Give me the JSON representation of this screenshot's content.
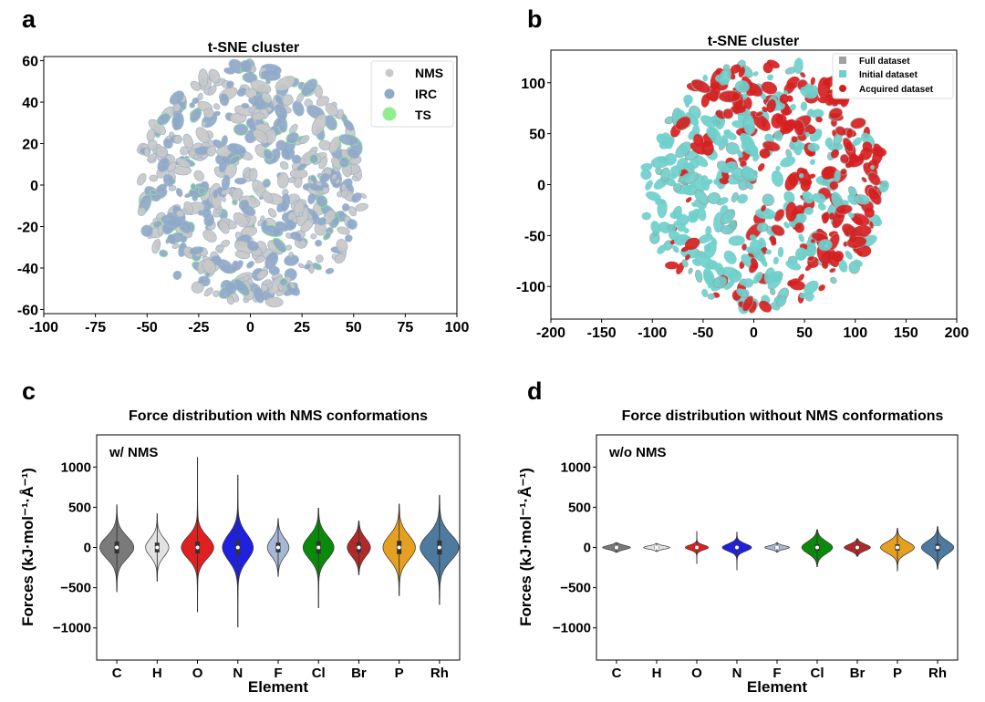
{
  "chart_data": [
    {
      "panel": "a",
      "type": "scatter",
      "title": "t-SNE cluster",
      "xlabel": "",
      "ylabel": "",
      "xlim": [
        -100,
        100
      ],
      "ylim": [
        -62,
        62
      ],
      "xticks": [
        "-100",
        "-75",
        "-50",
        "-25",
        "0",
        "25",
        "50",
        "75",
        "100"
      ],
      "xtick_values": [
        -100,
        -75,
        -50,
        -25,
        0,
        25,
        50,
        75,
        100
      ],
      "yticks": [
        "60",
        "40",
        "20",
        "0",
        "-20",
        "-40",
        "-60"
      ],
      "ytick_values": [
        60,
        40,
        20,
        0,
        -20,
        -40,
        -60
      ],
      "cluster": {
        "center": [
          0,
          0
        ],
        "radius_x": 55,
        "radius_y": 58
      },
      "legend": [
        {
          "label": "NMS",
          "color": "#c8c8c8"
        },
        {
          "label": "IRC",
          "color": "#8fa9c8"
        },
        {
          "label": "TS",
          "color": "#90ee90"
        }
      ],
      "legend_position": "top-right"
    },
    {
      "panel": "b",
      "type": "scatter",
      "title": "t-SNE cluster",
      "xlabel": "",
      "ylabel": "",
      "xlim": [
        -200,
        200
      ],
      "ylim": [
        -132,
        132
      ],
      "xticks": [
        "-200",
        "-150",
        "-100",
        "-50",
        "0",
        "50",
        "100",
        "150",
        "200"
      ],
      "xtick_values": [
        -200,
        -150,
        -100,
        -50,
        0,
        50,
        100,
        150,
        200
      ],
      "yticks": [
        "100",
        "50",
        "0",
        "-50",
        "-100"
      ],
      "ytick_values": [
        100,
        50,
        0,
        -50,
        -100
      ],
      "cluster": {
        "center": [
          10,
          0
        ],
        "radius_x": 120,
        "radius_y": 122
      },
      "legend": [
        {
          "label": "Full dataset",
          "color": "#a0a0a0"
        },
        {
          "label": "Initial dataset",
          "color": "#6fd0cc"
        },
        {
          "label": "Acquired dataset",
          "color": "#d62020"
        }
      ],
      "legend_position": "top-right"
    },
    {
      "panel": "c",
      "type": "violin",
      "title": "Force distribution with NMS conformations",
      "xlabel": "Element",
      "ylabel": "Forces (kJ·mol⁻¹·Å⁻¹)",
      "annotation": "w/ NMS",
      "ylim": [
        -1400,
        1400
      ],
      "yticks": [
        "1000",
        "500",
        "0",
        "−500",
        "−1000"
      ],
      "ytick_values": [
        1000,
        500,
        0,
        -500,
        -1000
      ],
      "categories": [
        "C",
        "H",
        "O",
        "N",
        "F",
        "Cl",
        "Br",
        "P",
        "Rh"
      ],
      "colors": [
        "#7a7a7a",
        "#e2e2e2",
        "#e02020",
        "#2020e0",
        "#a7b8d6",
        "#0a8a0a",
        "#b02a2a",
        "#e6a020",
        "#4e7aa0"
      ],
      "min": [
        -550,
        -420,
        -800,
        -990,
        -360,
        -750,
        -340,
        -600,
        -710
      ],
      "max": [
        530,
        420,
        1120,
        900,
        360,
        490,
        330,
        540,
        650
      ],
      "half_width": [
        0.44,
        0.3,
        0.42,
        0.4,
        0.28,
        0.4,
        0.3,
        0.42,
        0.5
      ],
      "spread": [
        135,
        110,
        135,
        160,
        110,
        140,
        110,
        150,
        160
      ]
    },
    {
      "panel": "d",
      "type": "violin",
      "title": "Force distribution without NMS conformations",
      "xlabel": "Element",
      "ylabel": "Forces (kJ·mol⁻¹·Å⁻¹)",
      "annotation": "w/o NMS",
      "ylim": [
        -1400,
        1400
      ],
      "yticks": [
        "1000",
        "500",
        "0",
        "−500",
        "−1000"
      ],
      "ytick_values": [
        1000,
        500,
        0,
        -500,
        -1000
      ],
      "categories": [
        "C",
        "H",
        "O",
        "N",
        "F",
        "Cl",
        "Br",
        "P",
        "Rh"
      ],
      "colors": [
        "#7a7a7a",
        "#e2e2e2",
        "#e02020",
        "#2020e0",
        "#a7b8d6",
        "#0a8a0a",
        "#b02a2a",
        "#e6a020",
        "#4e7aa0"
      ],
      "min": [
        -60,
        -50,
        -200,
        -280,
        -60,
        -240,
        -110,
        -290,
        -270
      ],
      "max": [
        60,
        50,
        200,
        190,
        60,
        220,
        110,
        240,
        260
      ],
      "half_width": [
        0.36,
        0.34,
        0.3,
        0.38,
        0.32,
        0.4,
        0.34,
        0.44,
        0.42
      ],
      "spread": [
        25,
        20,
        30,
        45,
        22,
        75,
        40,
        70,
        80
      ]
    }
  ],
  "panels": {
    "a": {
      "letter": "a"
    },
    "b": {
      "letter": "b"
    },
    "c": {
      "letter": "c"
    },
    "d": {
      "letter": "d"
    }
  }
}
